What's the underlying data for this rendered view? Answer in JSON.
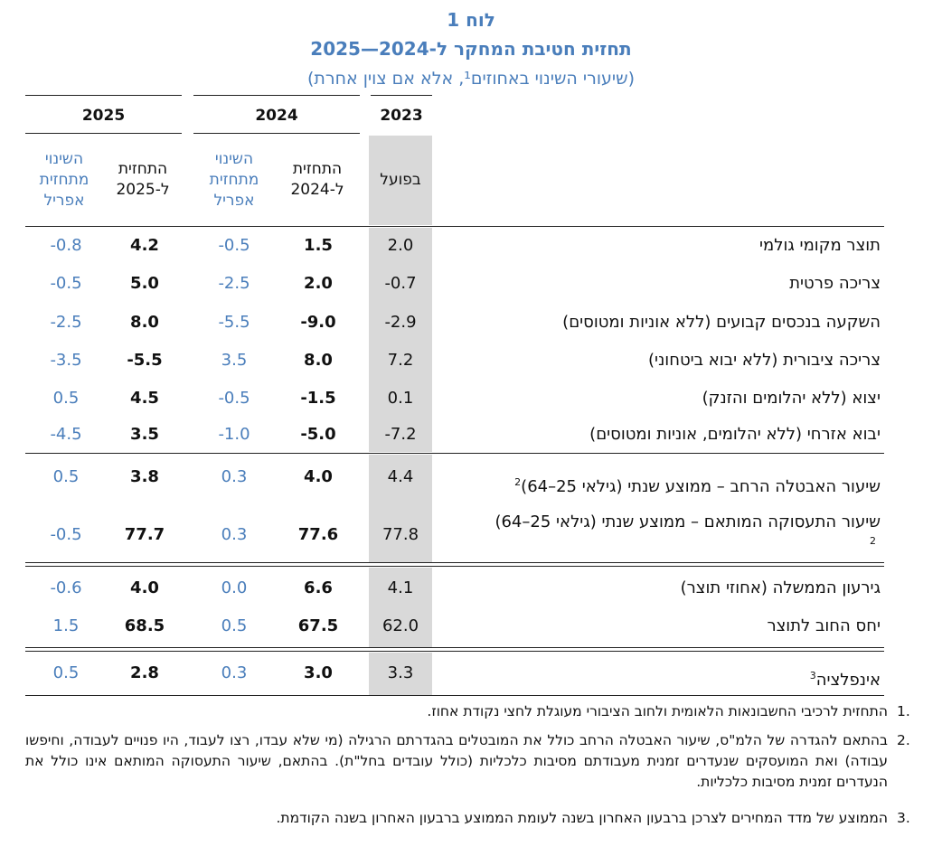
{
  "title": {
    "line1": "לוח 1",
    "line2": "תחזית חטיבת המחקר ל-2024—2025",
    "line3": "(שיעורי השינוי באחוזים¹, אלא אם צוין אחרת)"
  },
  "headers": {
    "year_2025": "2025",
    "year_2024": "2024",
    "year_2023": "2023",
    "actual": "בפועל",
    "forecast_2024": "התחזית ל-2024",
    "change_2024": "השינוי מתחזית אפריל",
    "forecast_2025": "התחזית ל-2025",
    "change_2025": "השינוי מתחזית אפריל"
  },
  "rows": [
    {
      "label": "תוצר מקומי גולמי",
      "sup": "",
      "actual": "2.0",
      "f24": "1.5",
      "ch24": "-0.5",
      "f25": "4.2",
      "ch25": "-0.8"
    },
    {
      "label": "צריכה פרטית",
      "sup": "",
      "actual": "-0.7",
      "f24": "2.0",
      "ch24": "-2.5",
      "f25": "5.0",
      "ch25": "-0.5"
    },
    {
      "label": "השקעה בנכסים קבועים (ללא אוניות ומטוסים)",
      "sup": "",
      "actual": "-2.9",
      "f24": "-9.0",
      "ch24": "-5.5",
      "f25": "8.0",
      "ch25": "-2.5"
    },
    {
      "label": "צריכה ציבורית (ללא יבוא ביטחוני)",
      "sup": "",
      "actual": "7.2",
      "f24": "8.0",
      "ch24": "3.5",
      "f25": "-5.5",
      "ch25": "-3.5"
    },
    {
      "label": "יצוא (ללא יהלומים והזנק)",
      "sup": "",
      "actual": "0.1",
      "f24": "-1.5",
      "ch24": "-0.5",
      "f25": "4.5",
      "ch25": "0.5"
    },
    {
      "label": "יבוא אזרחי (ללא יהלומים, אוניות ומטוסים)",
      "sup": "",
      "actual": "-7.2",
      "f24": "-5.0",
      "ch24": "-1.0",
      "f25": "3.5",
      "ch25": "-4.5"
    },
    {
      "label": "שיעור האבטלה הרחב – ממוצע שנתי (גילאי 25–64)",
      "sup": "2",
      "actual": "4.4",
      "f24": "4.0",
      "ch24": "0.3",
      "f25": "3.8",
      "ch25": "0.5"
    },
    {
      "label": "שיעור התעסוקה המותאם – ממוצע שנתי (גילאי 25–64)",
      "sup": "2",
      "actual": "77.8",
      "f24": "77.6",
      "ch24": "0.3",
      "f25": "77.7",
      "ch25": "-0.5"
    },
    {
      "label": "גירעון הממשלה (אחוזי תוצר)",
      "sup": "",
      "actual": "4.1",
      "f24": "6.6",
      "ch24": "0.0",
      "f25": "4.0",
      "ch25": "-0.6"
    },
    {
      "label": "יחס החוב לתוצר",
      "sup": "",
      "actual": "62.0",
      "f24": "67.5",
      "ch24": "0.5",
      "f25": "68.5",
      "ch25": "1.5"
    },
    {
      "label": "אינפלציה",
      "sup": "3",
      "actual": "3.3",
      "f24": "3.0",
      "ch24": "0.3",
      "f25": "2.8",
      "ch25": "0.5"
    }
  ],
  "notes": [
    {
      "num": "1.",
      "text": "התחזית לרכיבי החשבונאות הלאומית ולחוב הציבורי מעוגלת לחצי נקודת אחוז."
    },
    {
      "num": "2.",
      "text": "בהתאם להגדרה של הלמ\"ס, שיעור האבטלה הרחב כולל את המובטלים בהגדרתם הרגילה (מי שלא עבדו, רצו לעבוד, היו פנויים לעבודה, וחיפשו עבודה) ואת המועסקים שנעדרים זמנית מעבודתם מסיבות כלכליות (כולל עובדים בחל\"ת). בהתאם, שיעור התעסוקה המותאם אינו כולל את הנעדרים זמנית מסיבות כלכליות."
    },
    {
      "num": "3.",
      "text": "הממוצע של מדד המחירים לצרכן ברבעון האחרון בשנה לעומת הממוצע ברבעון האחרון בשנה הקודמת."
    }
  ]
}
